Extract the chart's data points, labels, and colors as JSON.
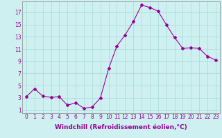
{
  "x": [
    0,
    1,
    2,
    3,
    4,
    5,
    6,
    7,
    8,
    9,
    10,
    11,
    12,
    13,
    14,
    15,
    16,
    17,
    18,
    19,
    20,
    21,
    22,
    23
  ],
  "y": [
    3.2,
    4.5,
    3.3,
    3.1,
    3.2,
    1.8,
    2.2,
    1.3,
    1.5,
    3.0,
    7.8,
    11.5,
    13.3,
    15.5,
    18.2,
    17.8,
    17.2,
    15.0,
    12.9,
    11.1,
    11.2,
    11.1,
    9.8,
    9.2
  ],
  "line_color": "#990099",
  "marker": "D",
  "marker_size": 2.0,
  "bg_color": "#cff0f0",
  "grid_color": "#aadddd",
  "xlabel": "Windchill (Refroidissement éolien,°C)",
  "ylabel_ticks": [
    1,
    3,
    5,
    7,
    9,
    11,
    13,
    15,
    17
  ],
  "xlim": [
    -0.5,
    23.5
  ],
  "ylim": [
    0.5,
    18.8
  ],
  "font_color": "#990099",
  "tick_fontsize": 5.5,
  "label_fontsize": 6.5
}
